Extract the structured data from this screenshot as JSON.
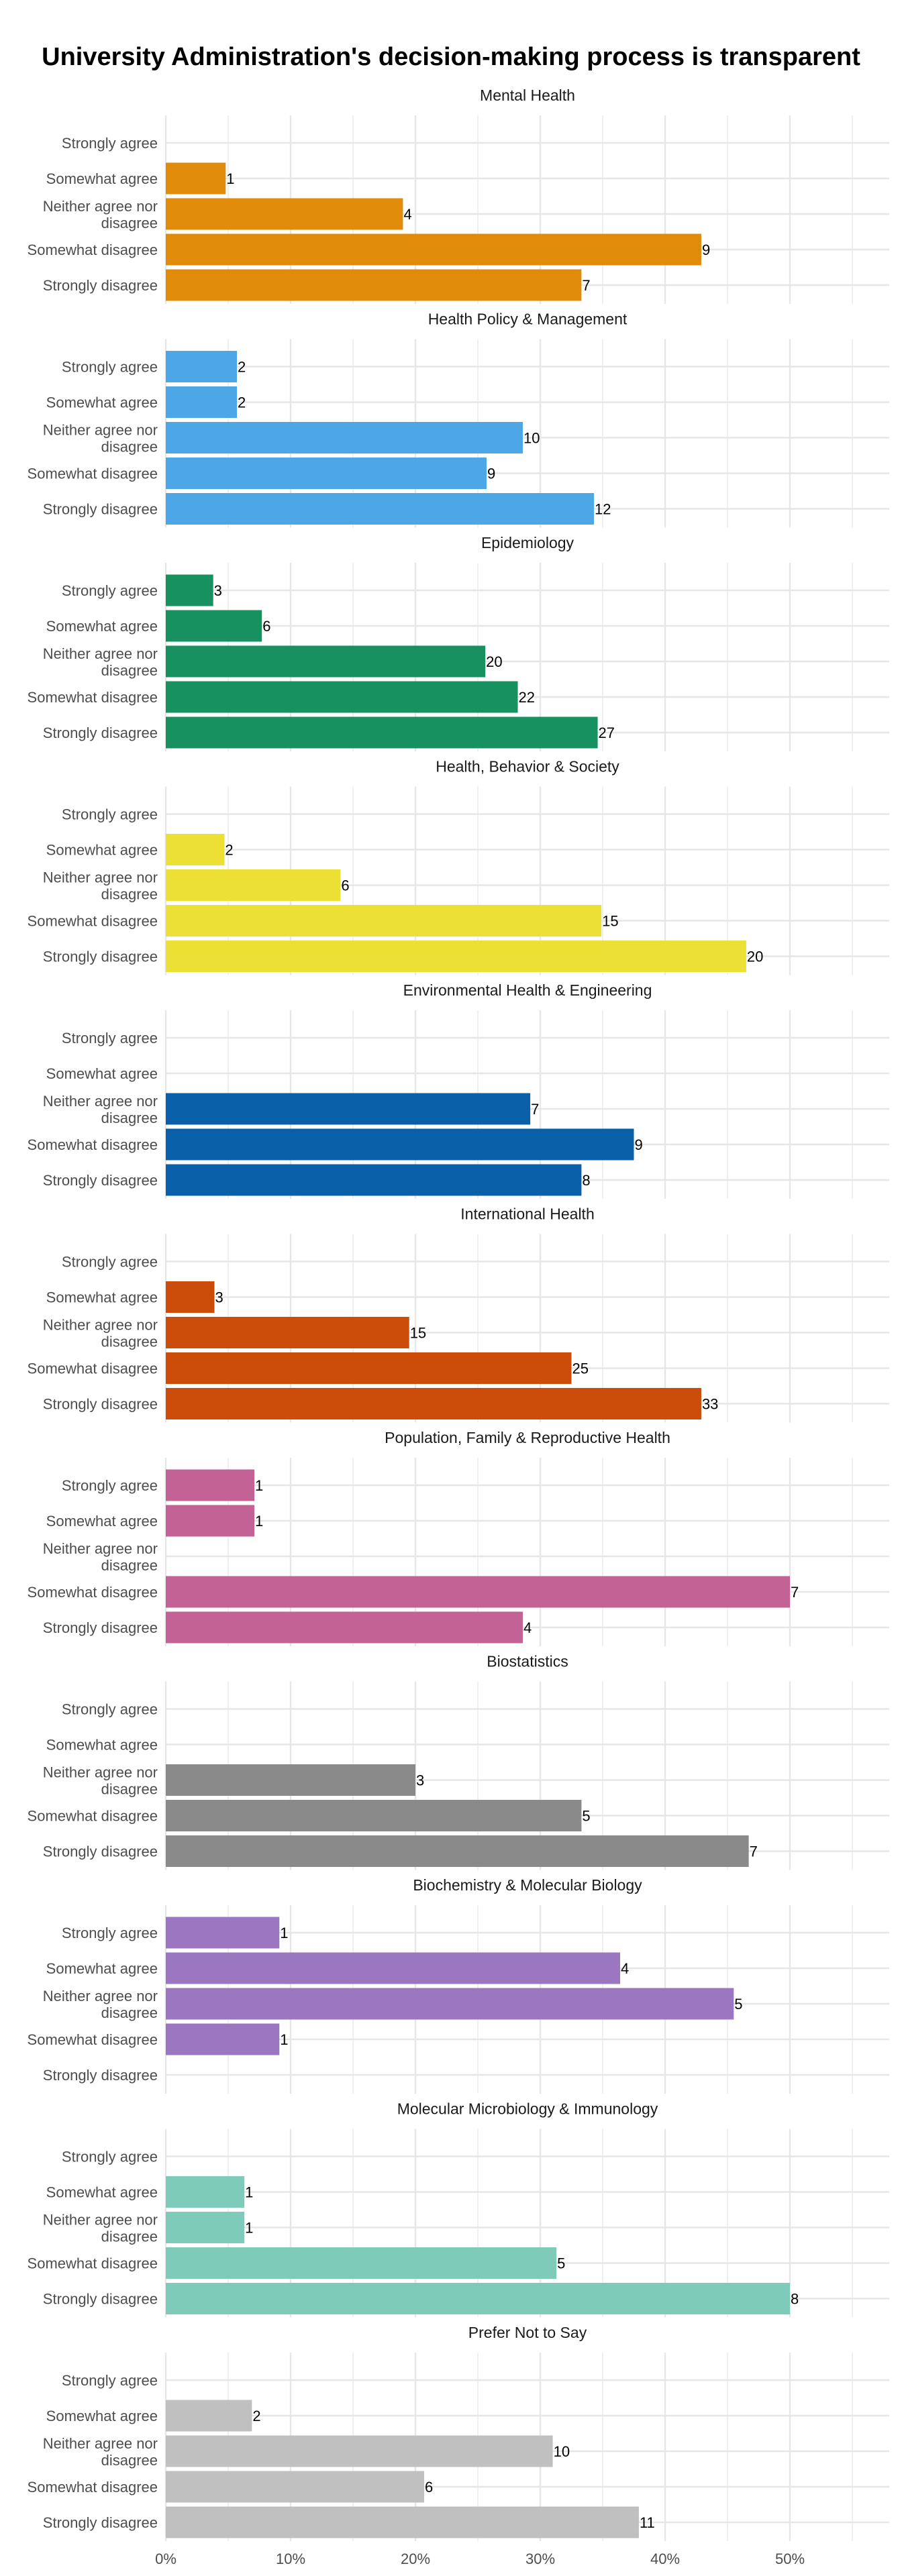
{
  "chart_data": {
    "type": "bar",
    "orientation": "horizontal",
    "title": "University Administration's decision-making process is transparent",
    "xlabel": "",
    "ylabel": "",
    "value_unit": "percent of respondents",
    "label_unit": "count",
    "xlim": [
      0,
      57
    ],
    "xticks": [
      0,
      10,
      20,
      30,
      40,
      50
    ],
    "xtick_labels": [
      "0%",
      "10%",
      "20%",
      "30%",
      "40%",
      "50%"
    ],
    "grid": true,
    "legend": "none",
    "categories": [
      "Strongly agree",
      "Somewhat agree",
      "Neither agree nor disagree",
      "Somewhat disagree",
      "Strongly disagree"
    ],
    "category_label_lines": [
      [
        "Strongly agree"
      ],
      [
        "Somewhat agree"
      ],
      [
        "Neither agree nor",
        "disagree"
      ],
      [
        "Somewhat disagree"
      ],
      [
        "Strongly disagree"
      ]
    ],
    "panels": [
      {
        "name": "Mental Health",
        "color": "#E08C0A",
        "values": [
          null,
          4.8,
          19.0,
          42.9,
          33.3
        ],
        "labels": [
          null,
          1,
          4,
          9,
          7
        ]
      },
      {
        "name": "Health Policy & Management",
        "color": "#4DA6E6",
        "values": [
          5.7,
          5.7,
          28.6,
          25.7,
          34.3
        ],
        "labels": [
          2,
          2,
          10,
          9,
          12
        ]
      },
      {
        "name": "Epidemiology",
        "color": "#16915F",
        "values": [
          3.8,
          7.7,
          25.6,
          28.2,
          34.6
        ],
        "labels": [
          3,
          6,
          20,
          22,
          27
        ]
      },
      {
        "name": "Health, Behavior & Society",
        "color": "#EDE035",
        "values": [
          null,
          4.7,
          14.0,
          34.9,
          46.5
        ],
        "labels": [
          null,
          2,
          6,
          15,
          20
        ]
      },
      {
        "name": "Environmental Health & Engineering",
        "color": "#0A60A8",
        "values": [
          null,
          null,
          29.2,
          37.5,
          33.3
        ],
        "labels": [
          null,
          null,
          7,
          9,
          8
        ]
      },
      {
        "name": "International Health",
        "color": "#CC4D0A",
        "values": [
          null,
          3.9,
          19.5,
          32.5,
          42.9
        ],
        "labels": [
          null,
          3,
          15,
          25,
          33
        ]
      },
      {
        "name": "Population, Family & Reproductive Health",
        "color": "#C26295",
        "values": [
          7.1,
          7.1,
          null,
          50.0,
          28.6
        ],
        "labels": [
          1,
          1,
          null,
          7,
          4
        ]
      },
      {
        "name": "Biostatistics",
        "color": "#8A8A8A",
        "values": [
          null,
          null,
          20.0,
          33.3,
          46.7
        ],
        "labels": [
          null,
          null,
          3,
          5,
          7
        ]
      },
      {
        "name": "Biochemistry & Molecular Biology",
        "color": "#9B76C1",
        "values": [
          9.1,
          36.4,
          45.5,
          9.1,
          null
        ],
        "labels": [
          1,
          4,
          5,
          1,
          null
        ]
      },
      {
        "name": "Molecular Microbiology & Immunology",
        "color": "#7ECBBA",
        "values": [
          null,
          6.3,
          6.3,
          31.3,
          50.0
        ],
        "labels": [
          null,
          1,
          1,
          5,
          8
        ]
      },
      {
        "name": "Prefer Not to Say",
        "color": "#C0C0C0",
        "values": [
          null,
          6.9,
          31.0,
          20.7,
          37.9
        ],
        "labels": [
          null,
          2,
          10,
          6,
          11
        ]
      }
    ]
  }
}
